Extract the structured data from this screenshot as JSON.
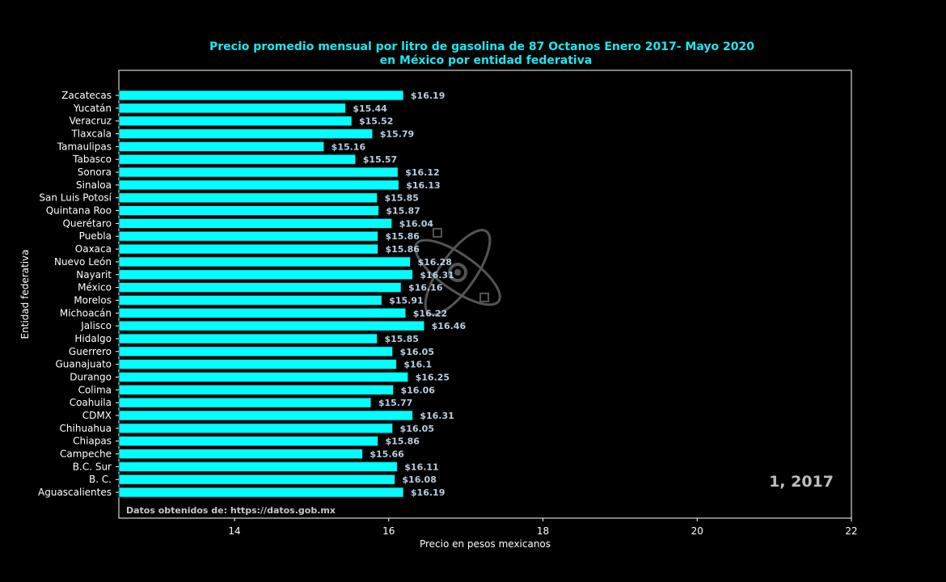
{
  "colors": {
    "background": "#000000",
    "bar": "#00ffff",
    "bar_edge": "#0a2a2a",
    "title": "#1ee6f0",
    "value_label": "#b8cfe0",
    "axes": "#ffffff"
  },
  "chart_data": {
    "type": "bar",
    "orientation": "horizontal",
    "title_line1": "Precio promedio mensual por litro de gasolina de 87 Octanos Enero 2017- Mayo 2020",
    "title_line2": "en México por entidad federativa",
    "xlabel": "Precio en pesos mexicanos",
    "ylabel": "Entidad federativa",
    "xlim": [
      12.5,
      22
    ],
    "xticks": [
      14,
      16,
      18,
      20,
      22
    ],
    "grid": false,
    "period_label": "1, 2017",
    "source_note": "Datos obtenidos de: https://datos.gob.mx",
    "watermark_icon": "atom-gear-logo-icon",
    "categories": [
      "Zacatecas",
      "Yucatán",
      "Veracruz",
      "Tlaxcala",
      "Tamaulipas",
      "Tabasco",
      "Sonora",
      "Sinaloa",
      "San Luis Potosí",
      "Quintana Roo",
      "Querétaro",
      "Puebla",
      "Oaxaca",
      "Nuevo León",
      "Nayarit",
      "México",
      "Morelos",
      "Michoacán",
      "Jalisco",
      "Hidalgo",
      "Guerrero",
      "Guanajuato",
      "Durango",
      "Colima",
      "Coahuila",
      "CDMX",
      "Chihuahua",
      "Chiapas",
      "Campeche",
      "B.C. Sur",
      "B. C.",
      "Aguascalientes"
    ],
    "values": [
      16.19,
      15.44,
      15.52,
      15.79,
      15.16,
      15.57,
      16.12,
      16.13,
      15.85,
      15.87,
      16.04,
      15.86,
      15.86,
      16.28,
      16.31,
      16.16,
      15.91,
      16.22,
      16.46,
      15.85,
      16.05,
      16.1,
      16.25,
      16.06,
      15.77,
      16.31,
      16.05,
      15.86,
      15.66,
      16.11,
      16.08,
      16.19
    ],
    "value_labels": [
      "$16.19",
      "$15.44",
      "$15.52",
      "$15.79",
      "$15.16",
      "$15.57",
      "$16.12",
      "$16.13",
      "$15.85",
      "$15.87",
      "$16.04",
      "$15.86",
      "$15.86",
      "$16.28",
      "$16.31",
      "$16.16",
      "$15.91",
      "$16.22",
      "$16.46",
      "$15.85",
      "$16.05",
      "$16.1",
      "$16.25",
      "$16.06",
      "$15.77",
      "$16.31",
      "$16.05",
      "$15.86",
      "$15.66",
      "$16.11",
      "$16.08",
      "$16.19"
    ]
  }
}
